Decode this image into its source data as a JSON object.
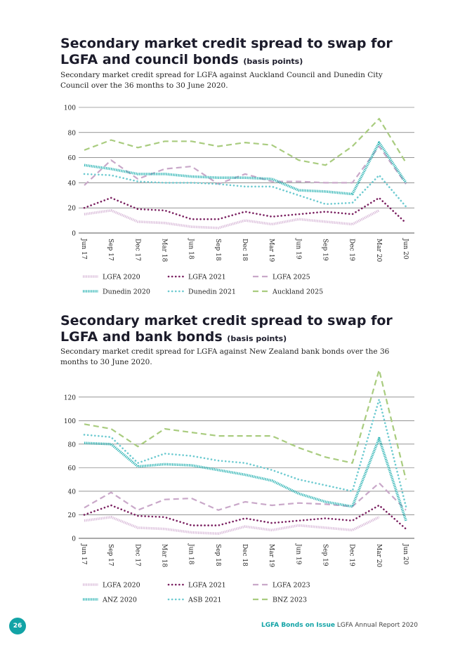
{
  "chart_data": [
    {
      "type": "line",
      "title": "Secondary market credit spread to swap for LGFA and council bonds",
      "title_unit": "(basis points)",
      "subtitle": "Secondary market credit spread for LGFA against Auckland Council and Dunedin City Council over the 36 months to 30 June 2020.",
      "x": [
        "Jun 17",
        "Sep 17",
        "Dec 17",
        "Mar 18",
        "Jun 18",
        "Sep 18",
        "Dec 18",
        "Mar 19",
        "Jun 19",
        "Sep 19",
        "Dec 19",
        "Mar 20",
        "Jun 20"
      ],
      "ylim": [
        0,
        100
      ],
      "yticks": [
        0,
        20,
        40,
        60,
        80,
        100
      ],
      "grid": true,
      "legend_position": "bottom",
      "series": [
        {
          "name": "LGFA 2020",
          "color": "#d8b9d8",
          "style": "hatched",
          "values": [
            15,
            18,
            9,
            8,
            5,
            4,
            10,
            7,
            11,
            9,
            7,
            18,
            null
          ]
        },
        {
          "name": "LGFA 2021",
          "color": "#7a2060",
          "style": "dotted",
          "values": [
            20,
            28,
            19,
            18,
            11,
            11,
            17,
            13,
            15,
            17,
            15,
            28,
            8
          ]
        },
        {
          "name": "LGFA 2025",
          "color": "#c9a8c9",
          "style": "dashed",
          "values": [
            38,
            58,
            43,
            51,
            53,
            39,
            47,
            41,
            41,
            40,
            40,
            69,
            39
          ]
        },
        {
          "name": "Dunedin 2020",
          "color": "#2ab3b3",
          "style": "hatched",
          "values": [
            54,
            51,
            47,
            47,
            45,
            44,
            44,
            43,
            34,
            33,
            31,
            72,
            40
          ]
        },
        {
          "name": "Dunedin 2021",
          "color": "#6ccad0",
          "style": "dotted",
          "values": [
            47,
            46,
            41,
            40,
            40,
            39,
            37,
            37,
            30,
            23,
            24,
            46,
            21
          ]
        },
        {
          "name": "Auckland 2025",
          "color": "#a9cc7f",
          "style": "dashed",
          "values": [
            66,
            74,
            68,
            73,
            73,
            69,
            72,
            70,
            58,
            54,
            69,
            91,
            56
          ]
        }
      ]
    },
    {
      "type": "line",
      "title": "Secondary market credit spread to swap for LGFA and bank bonds",
      "title_unit": "(basis points)",
      "subtitle": "Secondary market credit spread for LGFA against New Zealand bank bonds over the 36 months to 30 June 2020.",
      "x": [
        "Jun 17",
        "Sep 17",
        "Dec 17",
        "Mar 18",
        "Jun 18",
        "Sep 18",
        "Dec 18",
        "Mar 19",
        "Jun 19",
        "Sep 19",
        "Dec 19",
        "Mar 20",
        "Jun 20"
      ],
      "ylim": [
        0,
        130
      ],
      "yticks": [
        0,
        20,
        40,
        60,
        80,
        100,
        120
      ],
      "grid": true,
      "legend_position": "bottom",
      "series": [
        {
          "name": "LGFA 2020",
          "color": "#d8b9d8",
          "style": "hatched",
          "values": [
            15,
            18,
            9,
            8,
            5,
            4,
            10,
            7,
            11,
            9,
            7,
            18,
            null
          ]
        },
        {
          "name": "LGFA 2021",
          "color": "#7a2060",
          "style": "dotted",
          "values": [
            20,
            28,
            19,
            18,
            11,
            11,
            17,
            13,
            15,
            17,
            15,
            28,
            8
          ]
        },
        {
          "name": "LGFA 2023",
          "color": "#c9a8c9",
          "style": "dashed",
          "values": [
            26,
            39,
            24,
            33,
            34,
            24,
            31,
            28,
            30,
            29,
            27,
            47,
            24
          ]
        },
        {
          "name": "ANZ 2020",
          "color": "#2ab3b3",
          "style": "hatched",
          "values": [
            81,
            80,
            61,
            63,
            62,
            58,
            54,
            49,
            38,
            31,
            27,
            85,
            15
          ]
        },
        {
          "name": "ASB 2021",
          "color": "#6ccad0",
          "style": "dotted",
          "values": [
            88,
            86,
            64,
            72,
            70,
            66,
            64,
            58,
            50,
            45,
            40,
            118,
            27
          ]
        },
        {
          "name": "BNZ 2023",
          "color": "#a9cc7f",
          "style": "dashed",
          "values": [
            97,
            93,
            78,
            93,
            90,
            87,
            87,
            87,
            77,
            69,
            64,
            143,
            50
          ]
        }
      ]
    }
  ],
  "footer": {
    "page_number": "26",
    "section": "LGFA Bonds on Issue",
    "report": "LGFA Annual Report 2020"
  }
}
